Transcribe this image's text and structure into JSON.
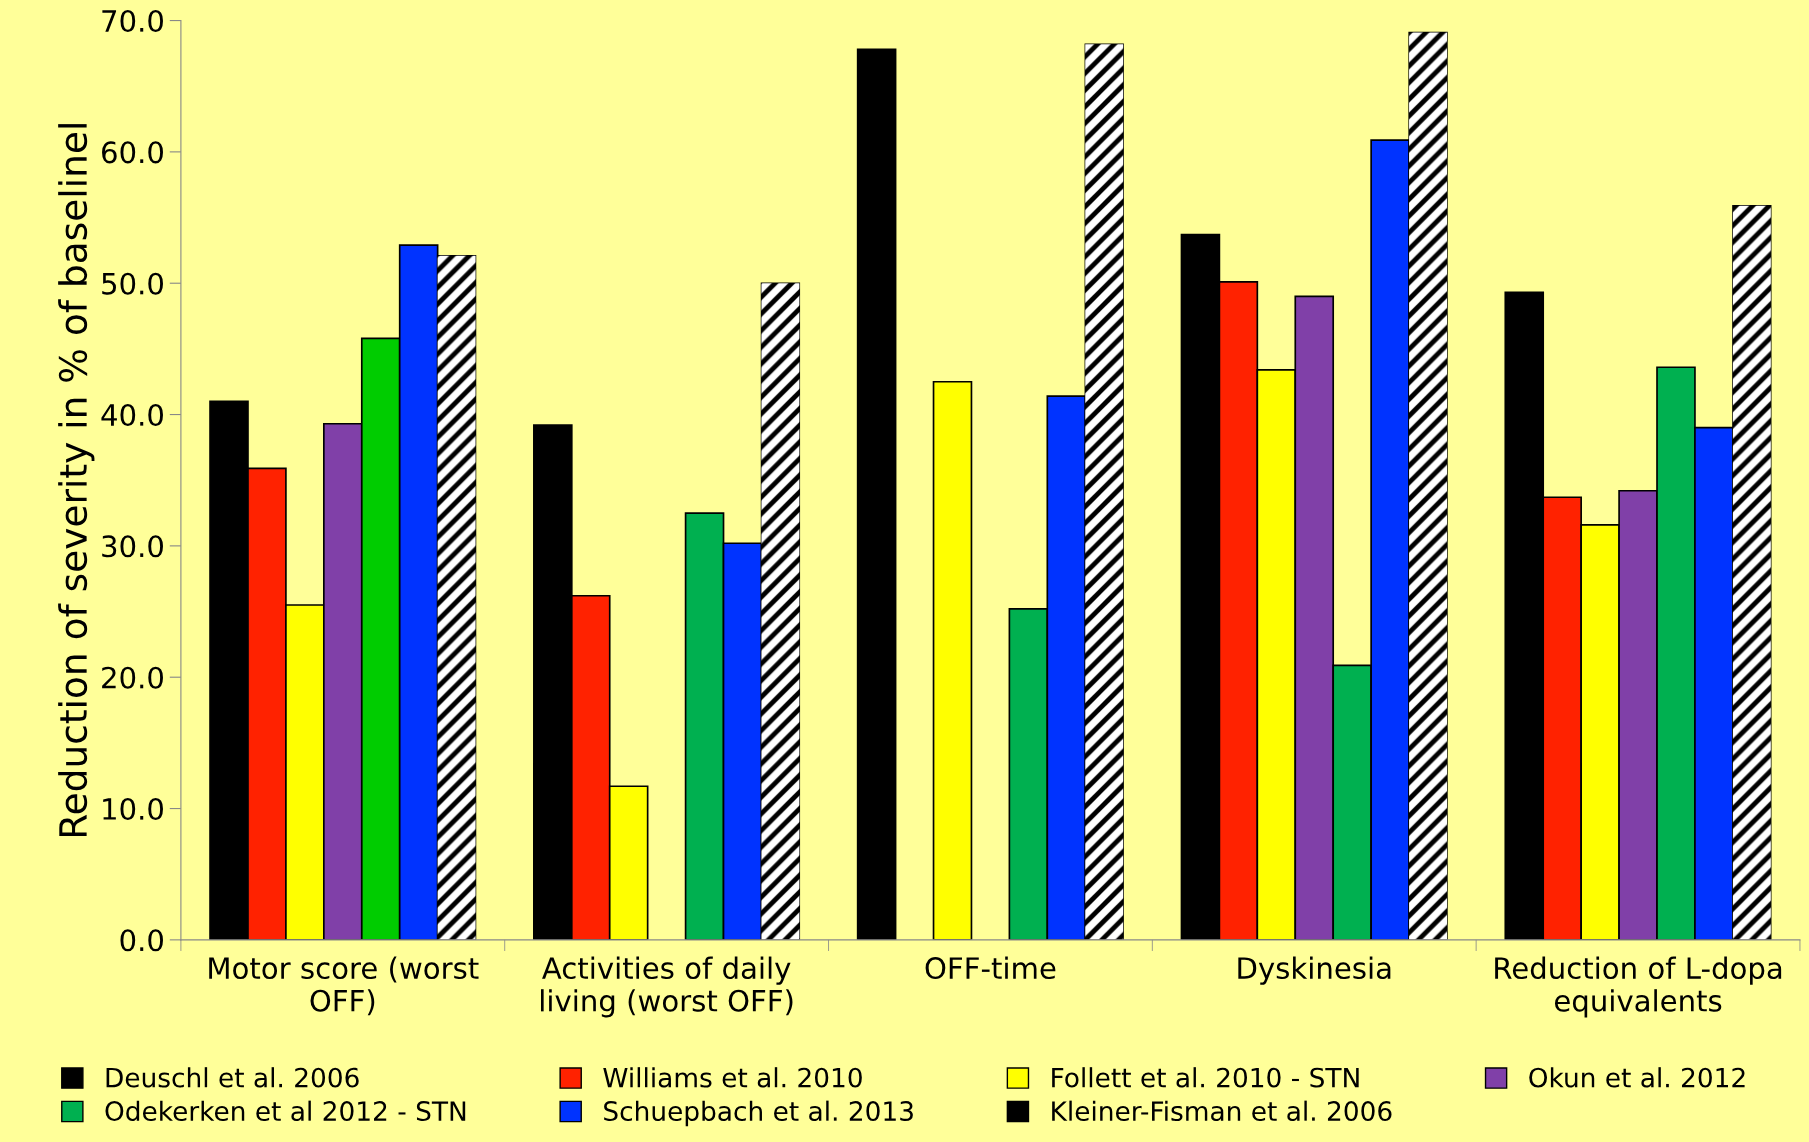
{
  "chart_data": {
    "type": "bar",
    "ylabel": "Reduction of severity in % of baselinel",
    "categories": [
      "Motor score (worst\nOFF)",
      "Activities of daily\nliving (worst OFF)",
      "OFF-time",
      "Dyskinesia",
      "Reduction of L-dopa\nequivalents"
    ],
    "series": [
      {
        "name": "Deuschl et al. 2006",
        "color": "#000000",
        "values": [
          41.0,
          39.2,
          67.8,
          53.7,
          49.3
        ]
      },
      {
        "name": "Williams et al. 2010",
        "color": "#ff2200",
        "values": [
          35.9,
          26.2,
          null,
          50.1,
          33.7
        ]
      },
      {
        "name": "Follett et al. 2010 - STN",
        "color": "#ffff00",
        "values": [
          25.5,
          11.7,
          42.5,
          43.4,
          31.6
        ]
      },
      {
        "name": "Okun et al. 2012",
        "color": "#8040a8",
        "values": [
          39.3,
          null,
          null,
          49.0,
          34.2
        ]
      },
      {
        "name": "Odekerken et al 2012 - STN",
        "color": "#00b050",
        "colors": [
          "#00cc00",
          "#00b050",
          "#00b050",
          "#00b050",
          "#00b050"
        ],
        "values": [
          45.8,
          32.5,
          25.2,
          20.9,
          43.6
        ]
      },
      {
        "name": "Schuepbach et al. 2013",
        "color": "#0033ff",
        "values": [
          52.9,
          30.2,
          41.4,
          60.9,
          39.0
        ]
      },
      {
        "name": "Kleiner-Fisman et al. 2006",
        "color": "#000000",
        "values": [
          52.1,
          50.0,
          68.2,
          69.1,
          55.9
        ]
      }
    ],
    "ylim": [
      0,
      70
    ],
    "yticks": [
      {
        "value": 0,
        "label": "0.0"
      },
      {
        "value": 10,
        "label": "10.0"
      },
      {
        "value": 20,
        "label": "20.0"
      },
      {
        "value": 30,
        "label": "30.0"
      },
      {
        "value": 40,
        "label": "40.0"
      },
      {
        "value": 50,
        "label": "50.0"
      },
      {
        "value": 60,
        "label": "60.0"
      },
      {
        "value": 70,
        "label": "70.0"
      }
    ],
    "grid": false,
    "legend": "bottom"
  }
}
